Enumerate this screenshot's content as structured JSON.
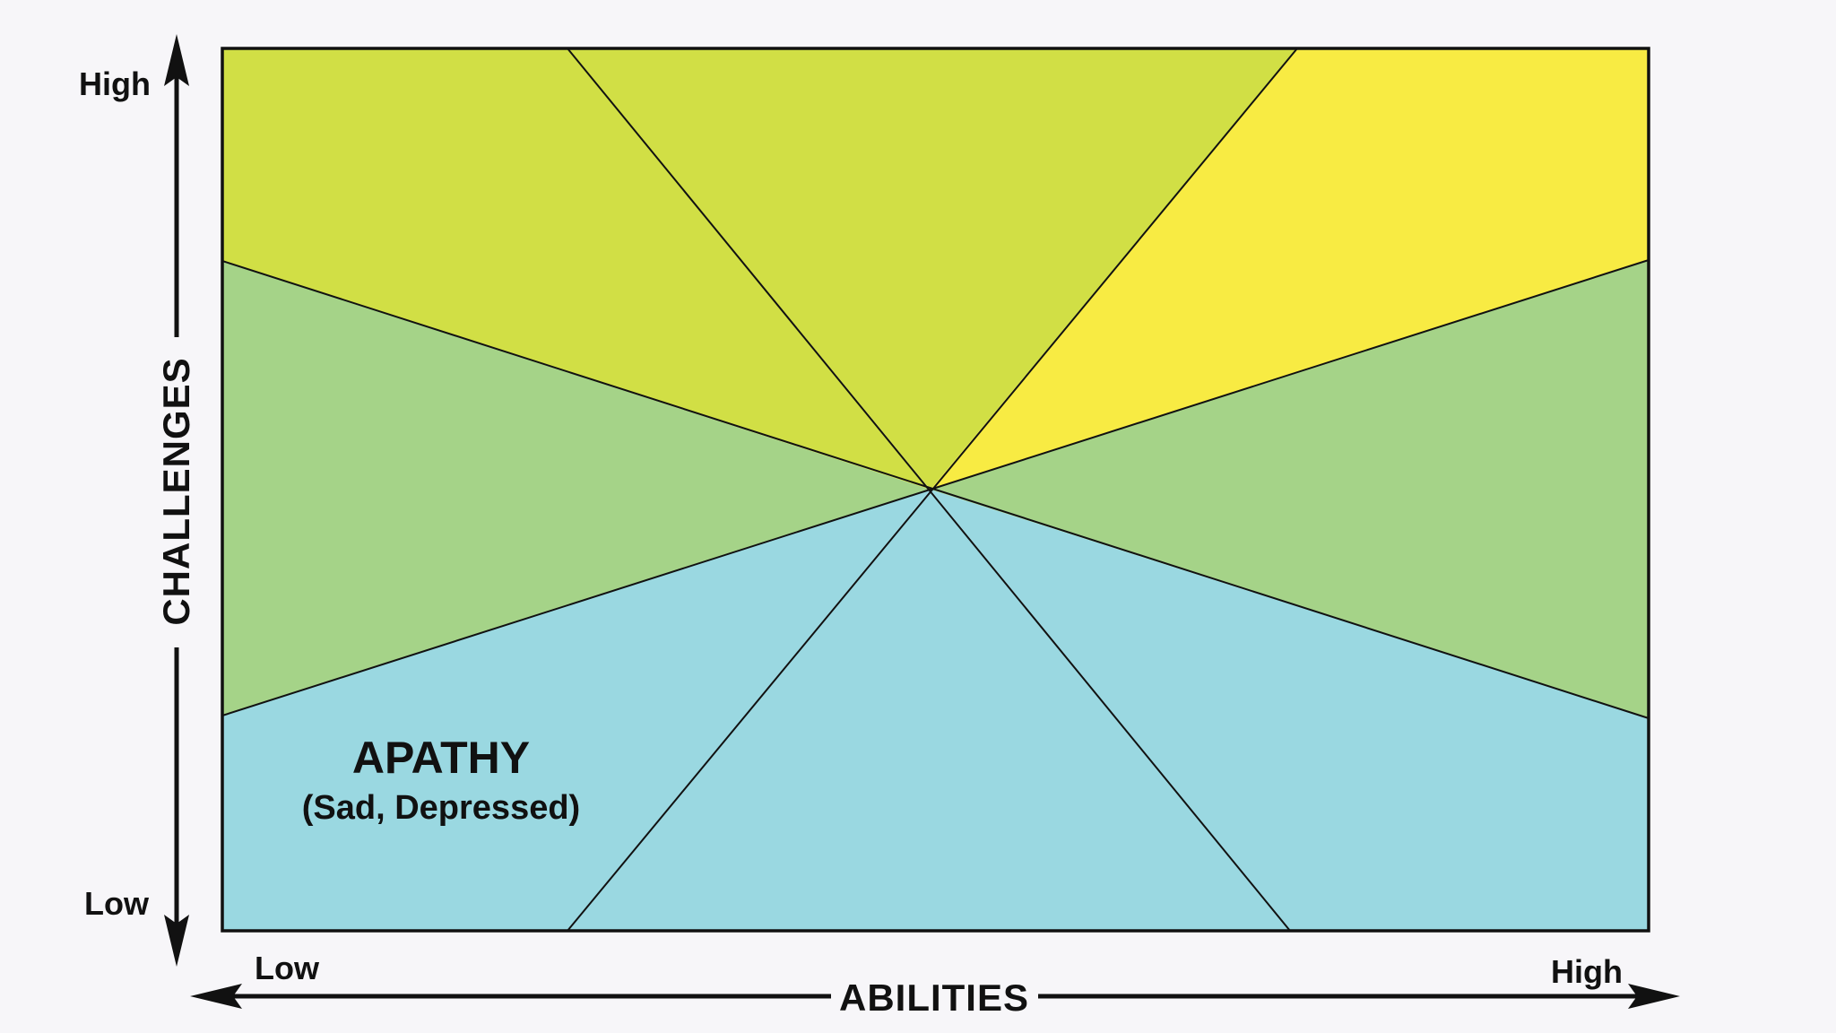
{
  "y_axis": {
    "title": "CHALLENGES",
    "high_label": "High",
    "low_label": "Low"
  },
  "x_axis": {
    "title": "ABILITIES",
    "low_label": "Low",
    "high_label": "High"
  },
  "regions": [
    {
      "id": "top-left",
      "color": "#d1df45"
    },
    {
      "id": "top-center",
      "color": "#d1df45"
    },
    {
      "id": "top-right",
      "color": "#f8eb43"
    },
    {
      "id": "middle-left",
      "color": "#a5d388"
    },
    {
      "id": "middle-right",
      "color": "#a5d388"
    },
    {
      "id": "bottom-left",
      "color": "#9ad8e1",
      "label": "APATHY",
      "sublabel": "(Sad, Depressed)"
    },
    {
      "id": "bottom-center",
      "color": "#9ad8e1"
    },
    {
      "id": "bottom-right",
      "color": "#9ad8e1"
    }
  ],
  "colors": {
    "background": "#f7f6f9",
    "lines": "#111111"
  }
}
